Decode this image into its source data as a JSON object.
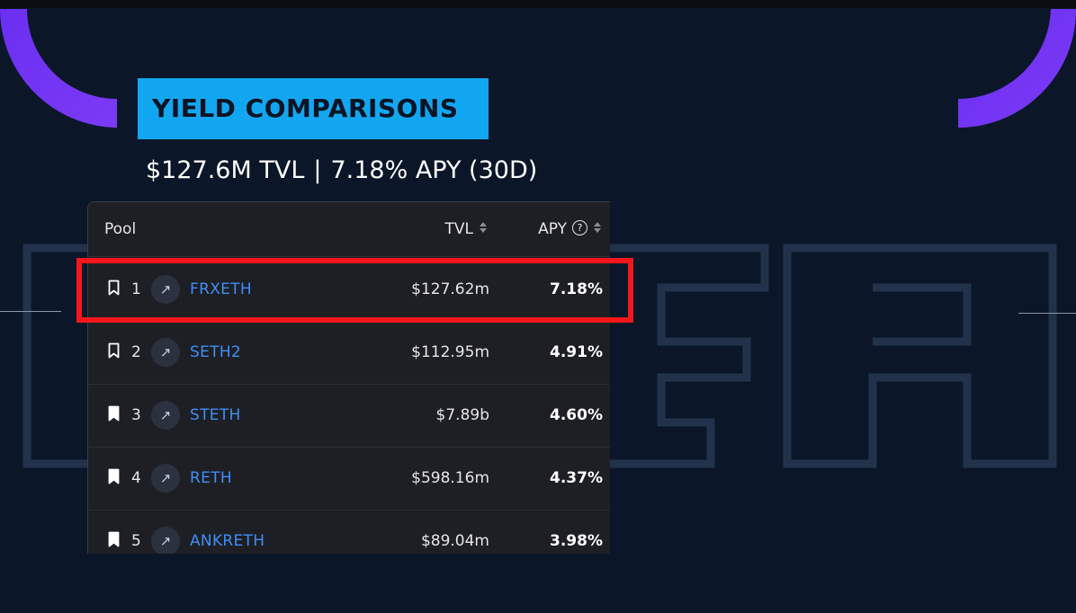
{
  "banner": {
    "title": "YIELD COMPARISONS"
  },
  "subtitle": {
    "tvl": "$127.6M TVL",
    "separator": "|",
    "apy": "7.18% APY (30D)"
  },
  "table": {
    "headers": {
      "pool": "Pool",
      "tvl": "TVL",
      "apy": "APY"
    },
    "rows": [
      {
        "rank": "1",
        "name": "FRXETH",
        "tvl": "$127.62m",
        "apy": "7.18%",
        "bookmarked": false
      },
      {
        "rank": "2",
        "name": "SETH2",
        "tvl": "$112.95m",
        "apy": "4.91%",
        "bookmarked": false
      },
      {
        "rank": "3",
        "name": "STETH",
        "tvl": "$7.89b",
        "apy": "4.60%",
        "bookmarked": true
      },
      {
        "rank": "4",
        "name": "RETH",
        "tvl": "$598.16m",
        "apy": "4.37%",
        "bookmarked": true
      },
      {
        "rank": "5",
        "name": "ANKRETH",
        "tvl": "$89.04m",
        "apy": "3.98%",
        "bookmarked": true
      }
    ]
  },
  "icons": {
    "bookmark": "bookmark-icon",
    "arrow": "arrow-up-right-icon",
    "sort": "sort-icon",
    "info": "info-icon"
  },
  "colors": {
    "background": "#0b1729",
    "banner": "#13a6f0",
    "accent_purple": "#7b2ff2",
    "highlight": "#f5161b",
    "link": "#3d8ef7"
  }
}
